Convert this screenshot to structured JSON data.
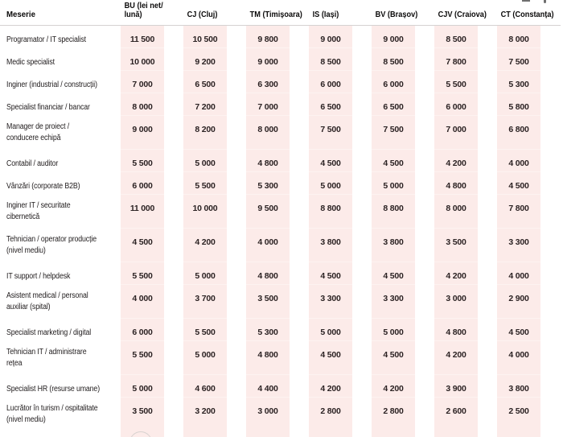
{
  "colors": {
    "cell_highlight": "#fcebe9",
    "header_rule": "#d5d2d1",
    "text": "#242021"
  },
  "chart_data": {
    "type": "table",
    "title": "",
    "value_unit": "lei net/lună",
    "columns": [
      "Meserie",
      "BU (lei net/\nlună)",
      "CJ (Cluj)",
      "TM (Timișoara)",
      "IS (Iași)",
      "BV (Brașov)",
      "CJV (Craiova)",
      "CT (Constanța)"
    ],
    "rows": [
      {
        "label": "Programator / IT specialist",
        "values": [
          "11 500",
          "10 500",
          "9 800",
          "9 000",
          "9 000",
          "8 500",
          "8 000"
        ]
      },
      {
        "label": "Medic specialist",
        "values": [
          "10 000",
          "9 200",
          "9 000",
          "8 500",
          "8 500",
          "7 800",
          "7 500"
        ]
      },
      {
        "label": "Inginer (industrial / construcții)",
        "values": [
          "7 000",
          "6 500",
          "6 300",
          "6 000",
          "6 000",
          "5 500",
          "5 300"
        ]
      },
      {
        "label": "Specialist financiar / bancar",
        "values": [
          "8 000",
          "7 200",
          "7 000",
          "6 500",
          "6 500",
          "6 000",
          "5 800"
        ]
      },
      {
        "label": "Manager de proiect /\nconducere echipă",
        "values": [
          "9 000",
          "8 200",
          "8 000",
          "7 500",
          "7 500",
          "7 000",
          "6 800"
        ]
      },
      {
        "label": "Contabil / auditor",
        "values": [
          "5 500",
          "5 000",
          "4 800",
          "4 500",
          "4 500",
          "4 200",
          "4 000"
        ]
      },
      {
        "label": "Vânzări (corporate B2B)",
        "values": [
          "6 000",
          "5 500",
          "5 300",
          "5 000",
          "5 000",
          "4 800",
          "4 500"
        ]
      },
      {
        "label": "Inginer IT / securitate\ncibernetică",
        "values": [
          "11 000",
          "10 000",
          "9 500",
          "8 800",
          "8 800",
          "8 000",
          "7 800"
        ]
      },
      {
        "label": "Tehnician / operator producție\n(nivel mediu)",
        "values": [
          "4 500",
          "4 200",
          "4 000",
          "3 800",
          "3 800",
          "3 500",
          "3 300"
        ]
      },
      {
        "label": "IT support / helpdesk",
        "values": [
          "5 500",
          "5 000",
          "4 800",
          "4 500",
          "4 500",
          "4 200",
          "4 000"
        ]
      },
      {
        "label": "Asistent medical / personal\nauxiliar (spital)",
        "values": [
          "4 000",
          "3 700",
          "3 500",
          "3 300",
          "3 300",
          "3 000",
          "2 900"
        ]
      },
      {
        "label": "Specialist marketing / digital",
        "values": [
          "6 000",
          "5 500",
          "5 300",
          "5 000",
          "5 000",
          "4 800",
          "4 500"
        ]
      },
      {
        "label": "Tehnician IT / administrare\nrețea",
        "values": [
          "5 500",
          "5 000",
          "4 800",
          "4 500",
          "4 500",
          "4 200",
          "4 000"
        ]
      },
      {
        "label": "Specialist HR (resurse umane)",
        "values": [
          "5 000",
          "4 600",
          "4 400",
          "4 200",
          "4 200",
          "3 900",
          "3 800"
        ]
      },
      {
        "label": "Lucrător în turism / ospitalitate\n(nivel mediu)",
        "values": [
          "3 500",
          "3 200",
          "3 000",
          "2 800",
          "2 800",
          "2 600",
          "2 500"
        ]
      }
    ],
    "layout": {
      "grid": "off",
      "highlighted_value_columns": true
    }
  }
}
